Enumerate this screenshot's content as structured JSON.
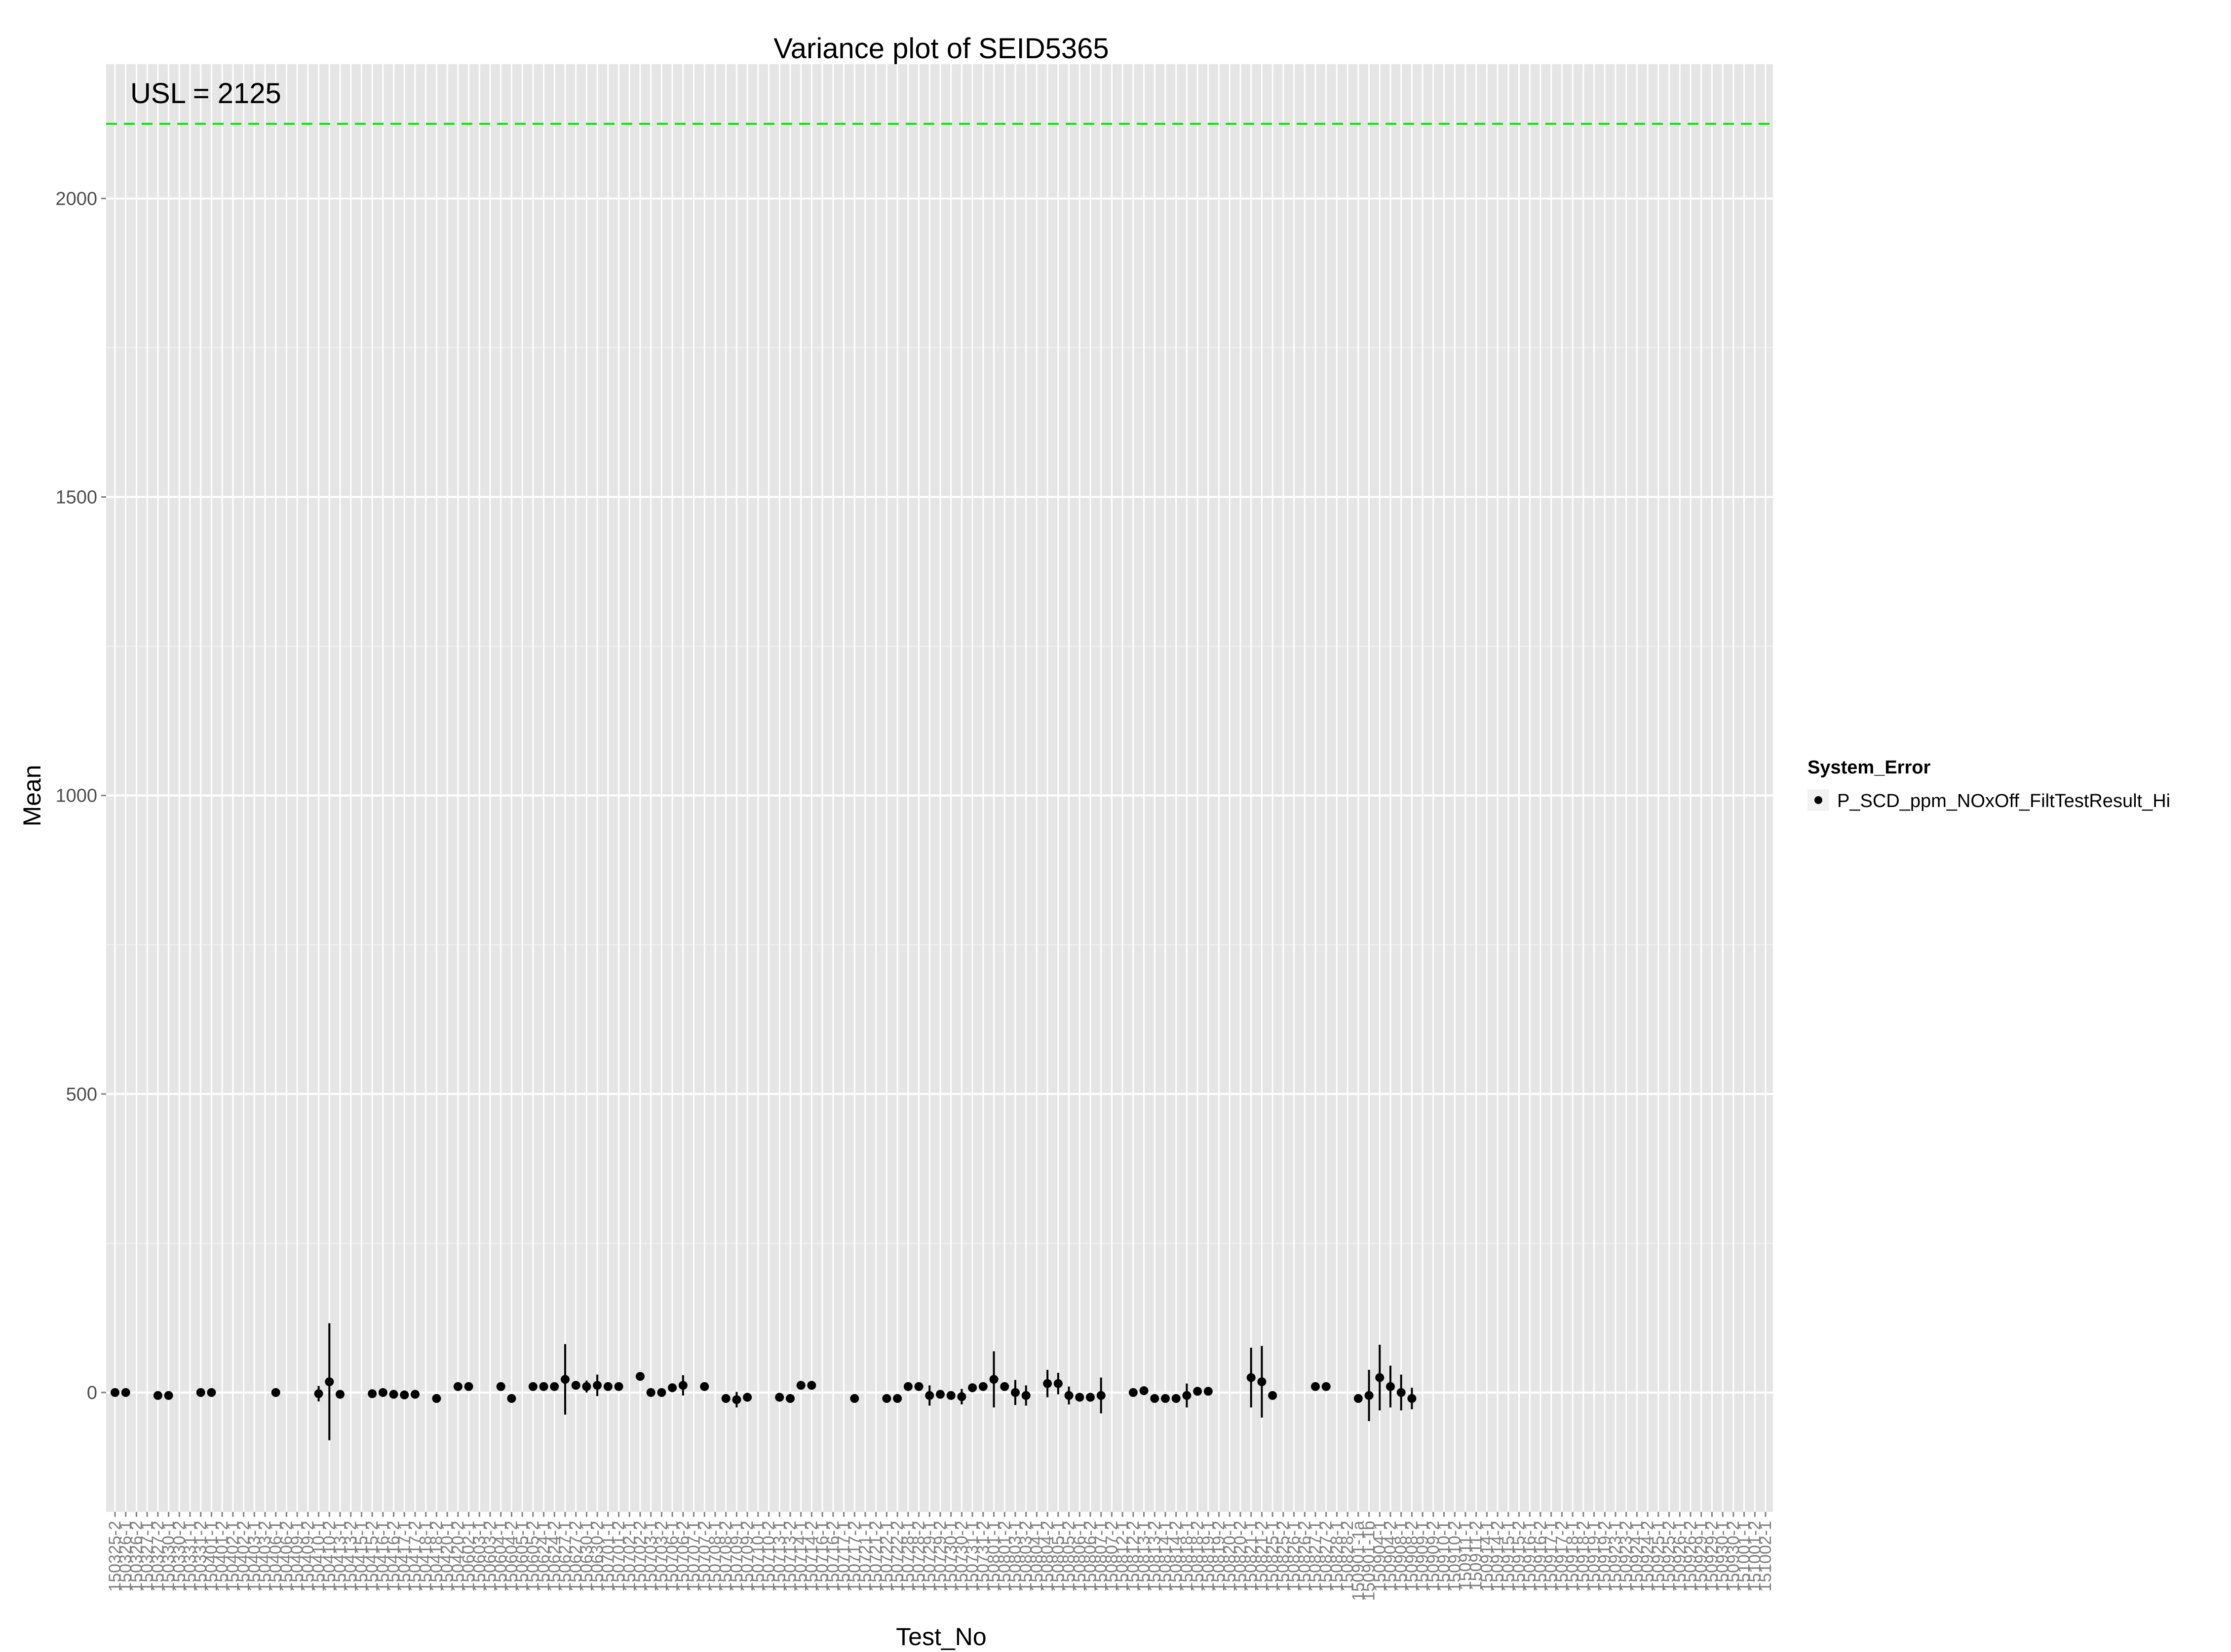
{
  "chart_data": {
    "type": "scatter",
    "title": "Variance plot of SEID5365",
    "xlabel": "Test_No",
    "ylabel": "Mean",
    "ylim": [
      -200,
      2225
    ],
    "yticks": [
      0,
      500,
      1000,
      1500,
      2000
    ],
    "grid": true,
    "legend": {
      "title": "System_Error",
      "position": "right",
      "entries": [
        "P_SCD_ppm_NOxOff_FiltTestResult_Hi"
      ]
    },
    "reference_line": {
      "label": "USL = 2125",
      "value": 2125,
      "color": "#00ee00",
      "style": "dashed"
    },
    "categories": [
      "150325-2",
      "150326-1",
      "150326-2",
      "150327-1",
      "150327-2",
      "150330-1",
      "150330-2",
      "150331-1",
      "150331-2",
      "150401-1",
      "150401-2",
      "150402-1",
      "150402-2",
      "150403-1",
      "150403-2",
      "150406-1",
      "150406-2",
      "150409-1",
      "150409-2",
      "150410-1",
      "150410-2",
      "150413-1",
      "150413-2",
      "150415-1",
      "150415-2",
      "150416-1",
      "150416-2",
      "150417-1",
      "150417-2",
      "150418-1",
      "150418-2",
      "150420-1",
      "150420-2",
      "150602-1",
      "150603-1",
      "150603-2",
      "150604-1",
      "150604-2",
      "150605-1",
      "150605-2",
      "150624-1",
      "150624-2",
      "150627-1",
      "150627-2",
      "150630-1",
      "150630-2",
      "150701-1",
      "150701-2",
      "150702-1",
      "150702-2",
      "150703-1",
      "150703-2",
      "150706-1",
      "150706-2",
      "150707-1",
      "150707-2",
      "150708-1",
      "150708-2",
      "150709-1",
      "150709-2",
      "150710-1",
      "150710-2",
      "150713-1",
      "150713-2",
      "150714-1",
      "150714-2",
      "150716-1",
      "150716-2",
      "150717-1",
      "150717-2",
      "150721-1",
      "150721-2",
      "150722-1",
      "150722-2",
      "150728-1",
      "150728-2",
      "150729-1",
      "150729-2",
      "150730-1",
      "150730-2",
      "150731-1",
      "150731-2",
      "150801-1",
      "150801-2",
      "150803-1",
      "150803-2",
      "150804-1",
      "150804-2",
      "150805-1",
      "150805-2",
      "150806-1",
      "150806-2",
      "150807-1",
      "150807-2",
      "150812-1",
      "150812-2",
      "150813-1",
      "150813-2",
      "150814-1",
      "150814-2",
      "150818-1",
      "150818-2",
      "150819-1",
      "150819-2",
      "150820-1",
      "150820-2",
      "150821-1",
      "150821-2",
      "150825-1",
      "150825-2",
      "150826-1",
      "150826-2",
      "150827-1",
      "150827-2",
      "150828-1",
      "150828-2",
      "150901-1a",
      "150901-1b",
      "150904-1",
      "150904-2",
      "150908-1",
      "150908-2",
      "150909-1",
      "150909-2",
      "150910-1",
      "150910-2",
      "150911-1",
      "150911-2",
      "150914-1",
      "150914-2",
      "150915-1",
      "150915-2",
      "150916-1",
      "150916-2",
      "150917-1",
      "150917-2",
      "150918-1",
      "150918-2",
      "150919-1",
      "150919-2",
      "150923-1",
      "150923-2",
      "150924-1",
      "150924-2",
      "150925-1",
      "150925-2",
      "150926-1",
      "150926-2",
      "150929-1",
      "150929-2",
      "150930-1",
      "150930-2",
      "151001-1",
      "151001-2",
      "151002-1"
    ],
    "points": [
      {
        "x": 0,
        "mean": 0
      },
      {
        "x": 1,
        "mean": 0
      },
      {
        "x": 4,
        "mean": -5
      },
      {
        "x": 5,
        "mean": -5
      },
      {
        "x": 8,
        "mean": 0
      },
      {
        "x": 9,
        "mean": 0
      },
      {
        "x": 15,
        "mean": 0
      },
      {
        "x": 19,
        "mean": -2,
        "low": -15,
        "high": 11
      },
      {
        "x": 20,
        "mean": 18,
        "low": -80,
        "high": 116
      },
      {
        "x": 21,
        "mean": -3
      },
      {
        "x": 24,
        "mean": -2
      },
      {
        "x": 25,
        "mean": 0
      },
      {
        "x": 26,
        "mean": -3
      },
      {
        "x": 27,
        "mean": -4
      },
      {
        "x": 28,
        "mean": -3
      },
      {
        "x": 30,
        "mean": -10
      },
      {
        "x": 32,
        "mean": 10
      },
      {
        "x": 33,
        "mean": 10
      },
      {
        "x": 36,
        "mean": 10
      },
      {
        "x": 37,
        "mean": -10
      },
      {
        "x": 39,
        "mean": 10
      },
      {
        "x": 40,
        "mean": 10
      },
      {
        "x": 41,
        "mean": 10
      },
      {
        "x": 42,
        "mean": 22,
        "low": -37,
        "high": 81
      },
      {
        "x": 43,
        "mean": 12
      },
      {
        "x": 44,
        "mean": 10,
        "low": 0,
        "high": 20
      },
      {
        "x": 45,
        "mean": 12,
        "low": -6,
        "high": 30
      },
      {
        "x": 46,
        "mean": 10
      },
      {
        "x": 47,
        "mean": 10
      },
      {
        "x": 49,
        "mean": 27
      },
      {
        "x": 50,
        "mean": 0
      },
      {
        "x": 51,
        "mean": 0
      },
      {
        "x": 52,
        "mean": 8
      },
      {
        "x": 53,
        "mean": 12,
        "low": -5,
        "high": 29
      },
      {
        "x": 55,
        "mean": 10
      },
      {
        "x": 57,
        "mean": -10
      },
      {
        "x": 58,
        "mean": -12,
        "low": -25,
        "high": 1
      },
      {
        "x": 59,
        "mean": -8
      },
      {
        "x": 62,
        "mean": -8
      },
      {
        "x": 63,
        "mean": -10
      },
      {
        "x": 64,
        "mean": 12
      },
      {
        "x": 65,
        "mean": 12
      },
      {
        "x": 69,
        "mean": -10
      },
      {
        "x": 72,
        "mean": -10
      },
      {
        "x": 73,
        "mean": -10
      },
      {
        "x": 74,
        "mean": 10
      },
      {
        "x": 75,
        "mean": 10
      },
      {
        "x": 76,
        "mean": -5,
        "low": -22,
        "high": 12
      },
      {
        "x": 77,
        "mean": -3
      },
      {
        "x": 78,
        "mean": -5
      },
      {
        "x": 79,
        "mean": -7,
        "low": -20,
        "high": 6
      },
      {
        "x": 80,
        "mean": 8
      },
      {
        "x": 81,
        "mean": 10
      },
      {
        "x": 82,
        "mean": 22,
        "low": -25,
        "high": 69
      },
      {
        "x": 83,
        "mean": 10
      },
      {
        "x": 84,
        "mean": 0,
        "low": -21,
        "high": 21
      },
      {
        "x": 85,
        "mean": -5,
        "low": -22,
        "high": 12
      },
      {
        "x": 87,
        "mean": 15,
        "low": -8,
        "high": 38
      },
      {
        "x": 88,
        "mean": 15,
        "low": -3,
        "high": 33
      },
      {
        "x": 89,
        "mean": -5,
        "low": -20,
        "high": 10
      },
      {
        "x": 90,
        "mean": -8
      },
      {
        "x": 91,
        "mean": -8
      },
      {
        "x": 92,
        "mean": -5,
        "low": -35,
        "high": 25
      },
      {
        "x": 95,
        "mean": 0
      },
      {
        "x": 96,
        "mean": 3
      },
      {
        "x": 97,
        "mean": -10
      },
      {
        "x": 98,
        "mean": -10
      },
      {
        "x": 99,
        "mean": -10
      },
      {
        "x": 100,
        "mean": -5,
        "low": -25,
        "high": 15
      },
      {
        "x": 101,
        "mean": 2
      },
      {
        "x": 102,
        "mean": 2
      },
      {
        "x": 106,
        "mean": 25,
        "low": -25,
        "high": 75
      },
      {
        "x": 107,
        "mean": 18,
        "low": -42,
        "high": 78
      },
      {
        "x": 108,
        "mean": -5
      },
      {
        "x": 112,
        "mean": 10
      },
      {
        "x": 113,
        "mean": 10
      },
      {
        "x": 116,
        "mean": -10
      },
      {
        "x": 117,
        "mean": -5,
        "low": -48,
        "high": 38
      },
      {
        "x": 118,
        "mean": 25,
        "low": -30,
        "high": 80
      },
      {
        "x": 119,
        "mean": 10,
        "low": -25,
        "high": 45
      },
      {
        "x": 120,
        "mean": 0,
        "low": -30,
        "high": 30
      },
      {
        "x": 121,
        "mean": -10,
        "low": -28,
        "high": 8
      }
    ]
  }
}
